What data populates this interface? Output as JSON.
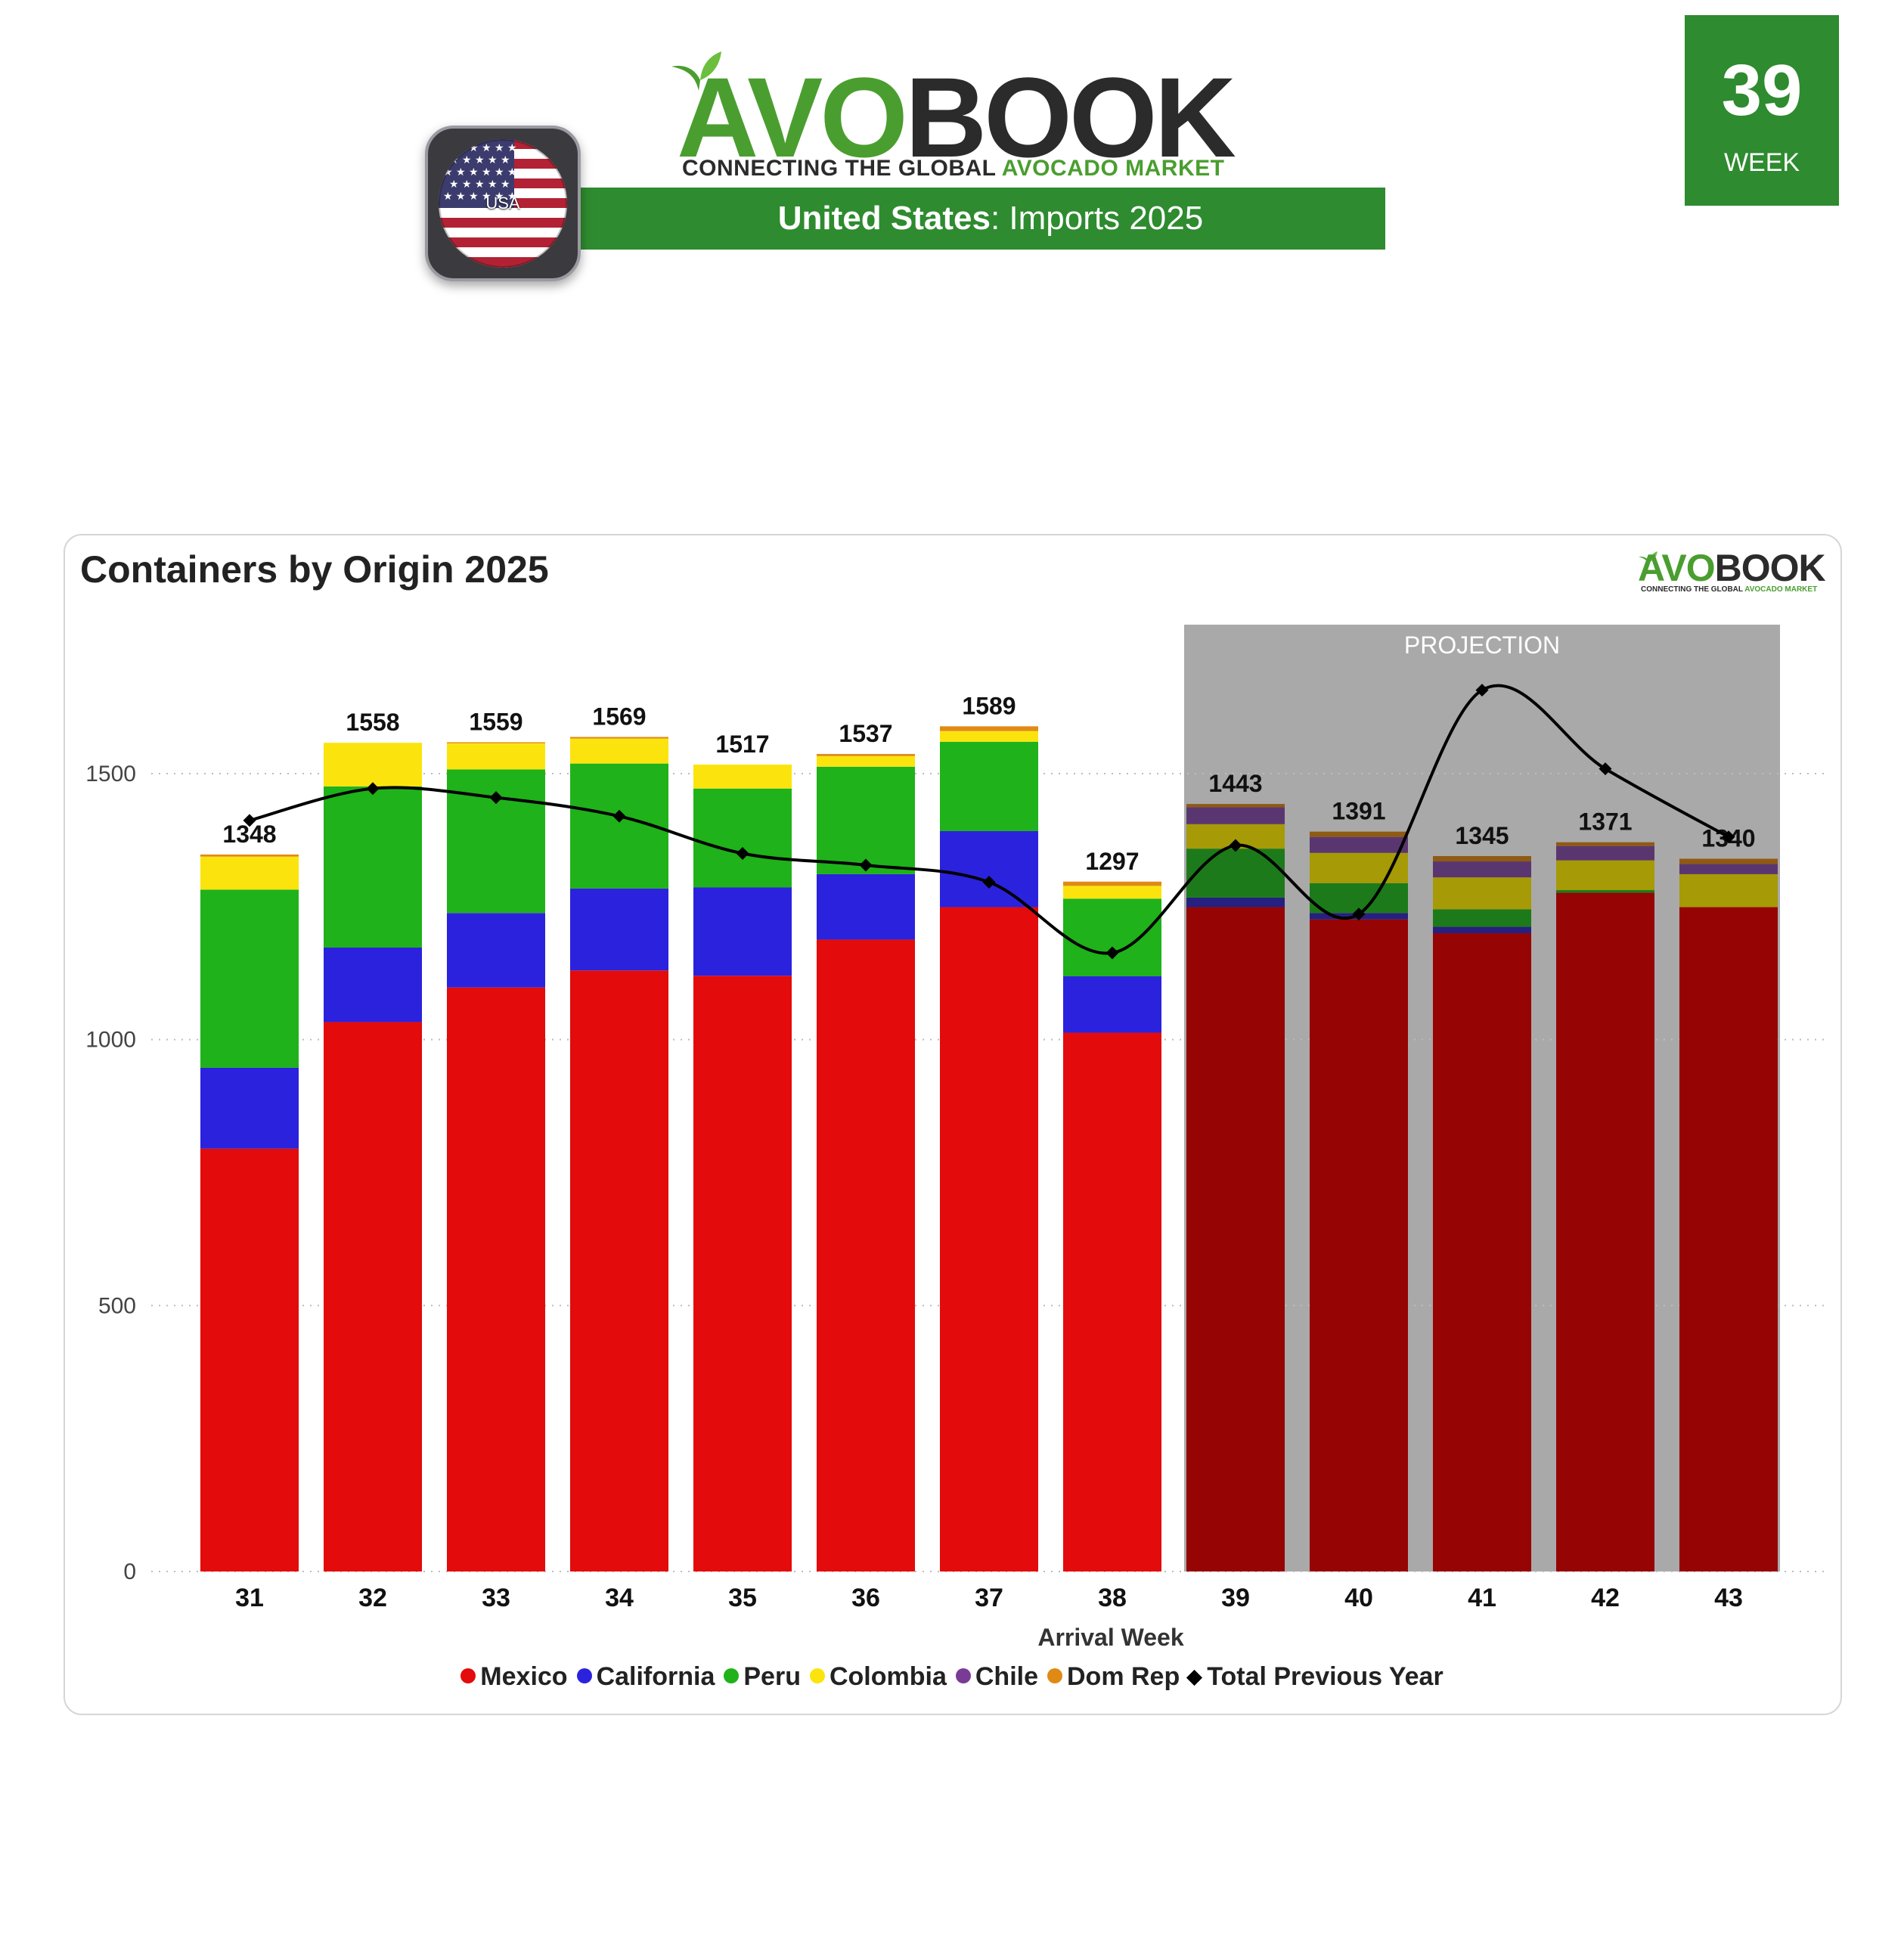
{
  "header": {
    "logo_avo": "AVO",
    "logo_book": "BOOK",
    "tagline_prefix": "CONNECTING THE GLOBAL",
    "tagline_highlight": "AVOCADO MARKET",
    "banner_country": "United States",
    "banner_rest": ": Imports 2025",
    "flag_label": "USA",
    "week_number": "39",
    "week_label": "WEEK"
  },
  "colors": {
    "brand_green": "#2e8b2f",
    "logo_green": "#4a9e2f",
    "projection_overlay": "#a9a9a9"
  },
  "chart_data": {
    "type": "bar",
    "stacked": true,
    "title": "Containers by Origin 2025",
    "xlabel": "Arrival Week",
    "ylabel": "",
    "ylim": [
      0,
      1750
    ],
    "yticks": [
      0,
      500,
      1000,
      1500
    ],
    "grid": "horizontal-dotted",
    "legend_position": "bottom",
    "categories": [
      "31",
      "32",
      "33",
      "34",
      "35",
      "36",
      "37",
      "38",
      "39",
      "40",
      "41",
      "42",
      "43"
    ],
    "series": [
      {
        "name": "Mexico",
        "color": "#e30b0b",
        "projected_color": "#960404",
        "values": [
          795,
          1033,
          1098,
          1130,
          1120,
          1188,
          1249,
          1013,
          1249,
          1226,
          1200,
          1276,
          1249
        ]
      },
      {
        "name": "California",
        "color": "#2b22de",
        "projected_color": "#262080",
        "values": [
          152,
          140,
          140,
          154,
          166,
          123,
          143,
          106,
          18,
          12,
          12,
          0,
          0
        ]
      },
      {
        "name": "Peru",
        "color": "#1fb21a",
        "projected_color": "#1d7a1a",
        "values": [
          335,
          303,
          270,
          235,
          186,
          202,
          168,
          146,
          92,
          56,
          33,
          5,
          0
        ]
      },
      {
        "name": "Colombia",
        "color": "#fbe40d",
        "projected_color": "#a69a06",
        "values": [
          62,
          82,
          49,
          47,
          45,
          20,
          20,
          24,
          46,
          57,
          60,
          56,
          62
        ]
      },
      {
        "name": "Chile",
        "color": "#7a3b97",
        "projected_color": "#5a3670",
        "values": [
          0,
          0,
          0,
          0,
          0,
          0,
          0,
          0,
          32,
          30,
          30,
          27,
          19
        ]
      },
      {
        "name": "Dom Rep",
        "color": "#e08a16",
        "projected_color": "#8f5a12",
        "values": [
          4,
          0,
          2,
          3,
          0,
          4,
          9,
          8,
          6,
          10,
          10,
          7,
          10
        ]
      }
    ],
    "totals": [
      1348,
      1558,
      1559,
      1569,
      1517,
      1537,
      1589,
      1297,
      1443,
      1391,
      1345,
      1371,
      1340
    ],
    "line_series": {
      "name": "Total Previous Year",
      "color": "#000000",
      "marker": "diamond",
      "values": [
        1412,
        1472,
        1455,
        1420,
        1350,
        1328,
        1296,
        1163,
        1365,
        1236,
        1657,
        1509,
        1381
      ]
    },
    "projection": {
      "label": "PROJECTION",
      "from_category": "39",
      "to_category": "43"
    }
  }
}
